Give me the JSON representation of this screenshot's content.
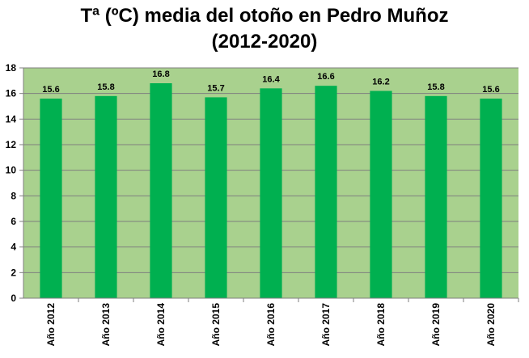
{
  "chart_data": {
    "type": "bar",
    "title_lines": [
      "Tª (ºC) media del otoño en Pedro Muñoz",
      "(2012-2020)"
    ],
    "categories": [
      "Año 2012",
      "Año 2013",
      "Año 2014",
      "Año 2015",
      "Año 2016",
      "Año 2017",
      "Año 2018",
      "Año 2019",
      "Año 2020"
    ],
    "values": [
      15.6,
      15.8,
      16.8,
      15.7,
      16.4,
      16.6,
      16.2,
      15.8,
      15.6
    ],
    "value_labels": [
      "15.6",
      "15.8",
      "16.8",
      "15.7",
      "16.4",
      "16.6",
      "16.2",
      "15.8",
      "15.6"
    ],
    "yticks": [
      "0",
      "2",
      "4",
      "6",
      "8",
      "10",
      "12",
      "14",
      "16",
      "18"
    ],
    "ylim": [
      0,
      18
    ],
    "grid": true,
    "legend": "none",
    "colors": {
      "bar": "#00b050",
      "plot_background": "#a9d18e",
      "gridline": "#7f7f7f",
      "axis": "#7f7f7f",
      "text": "#000000"
    }
  }
}
